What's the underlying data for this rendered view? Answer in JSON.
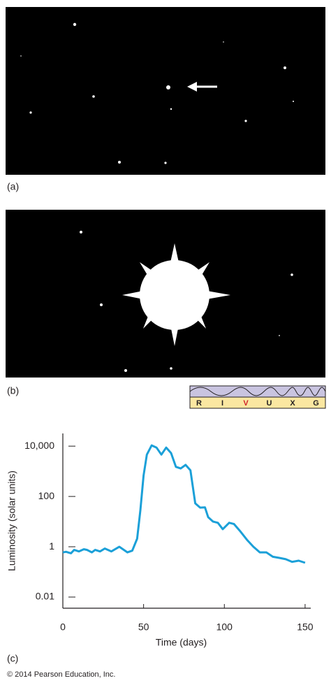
{
  "panel_labels": {
    "a": "(a)",
    "b": "(b)",
    "c": "(c)"
  },
  "spectrum": {
    "letters": [
      "R",
      "I",
      "V",
      "U",
      "X",
      "G"
    ],
    "highlight": "V"
  },
  "copyright": "© 2014 Pearson Education, Inc.",
  "chart_data": {
    "type": "line",
    "xlabel": "Time (days)",
    "ylabel": "Luminosity (solar units)",
    "x": [
      0,
      2,
      5,
      7,
      10,
      13,
      15,
      18,
      20,
      23,
      26,
      30,
      35,
      40,
      43,
      46,
      48,
      50,
      52,
      55,
      58,
      61,
      64,
      67,
      70,
      73,
      76,
      79,
      82,
      85,
      88,
      90,
      93,
      96,
      99,
      103,
      106,
      110,
      114,
      118,
      122,
      126,
      130,
      134,
      138,
      142,
      146,
      150
    ],
    "series": [
      {
        "name": "Light curve",
        "color": "#1ba0d8",
        "values": [
          0.6,
          0.63,
          0.55,
          0.75,
          0.65,
          0.8,
          0.75,
          0.6,
          0.75,
          0.65,
          0.85,
          0.65,
          1.0,
          0.6,
          0.7,
          2.1,
          28,
          680,
          4600,
          10700,
          8800,
          4600,
          8800,
          5300,
          1500,
          1300,
          1800,
          1100,
          53,
          36,
          37,
          15,
          10,
          9,
          5,
          9,
          8,
          4,
          1.9,
          1.0,
          0.6,
          0.6,
          0.4,
          0.36,
          0.32,
          0.25,
          0.28,
          0.23
        ]
      }
    ],
    "xlim": [
      0,
      153.5
    ],
    "xticks": [
      0,
      50,
      100,
      150
    ],
    "ylim": [
      0.0036,
      32000
    ],
    "log_y": true,
    "yticks": [
      0.01,
      1,
      100,
      {
        "value": 10000,
        "label": "10,000"
      }
    ]
  }
}
